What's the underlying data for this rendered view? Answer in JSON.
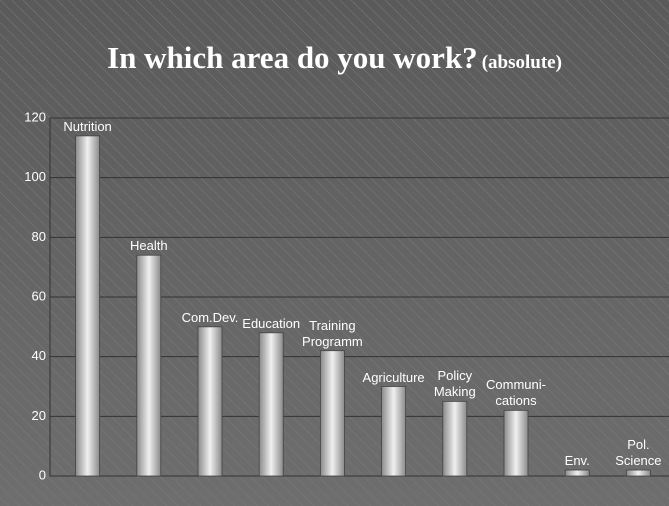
{
  "chart_data": {
    "type": "bar",
    "title": "In which area do you work?",
    "subtitle": "(absolute)",
    "categories": [
      "Nutrition",
      "Health",
      "Com.Dev.",
      "Education",
      "Training\nProgramm",
      "Agriculture",
      "Policy\nMaking",
      "Communi-\ncations",
      "Env.",
      "Pol.\nScience"
    ],
    "values": [
      114,
      74,
      50,
      48,
      42,
      30,
      25,
      22,
      2,
      2
    ],
    "color": "#b8b8b8",
    "ylim": [
      0,
      120
    ],
    "yticks": [
      0,
      20,
      40,
      60,
      80,
      100,
      120
    ],
    "grid": true
  }
}
